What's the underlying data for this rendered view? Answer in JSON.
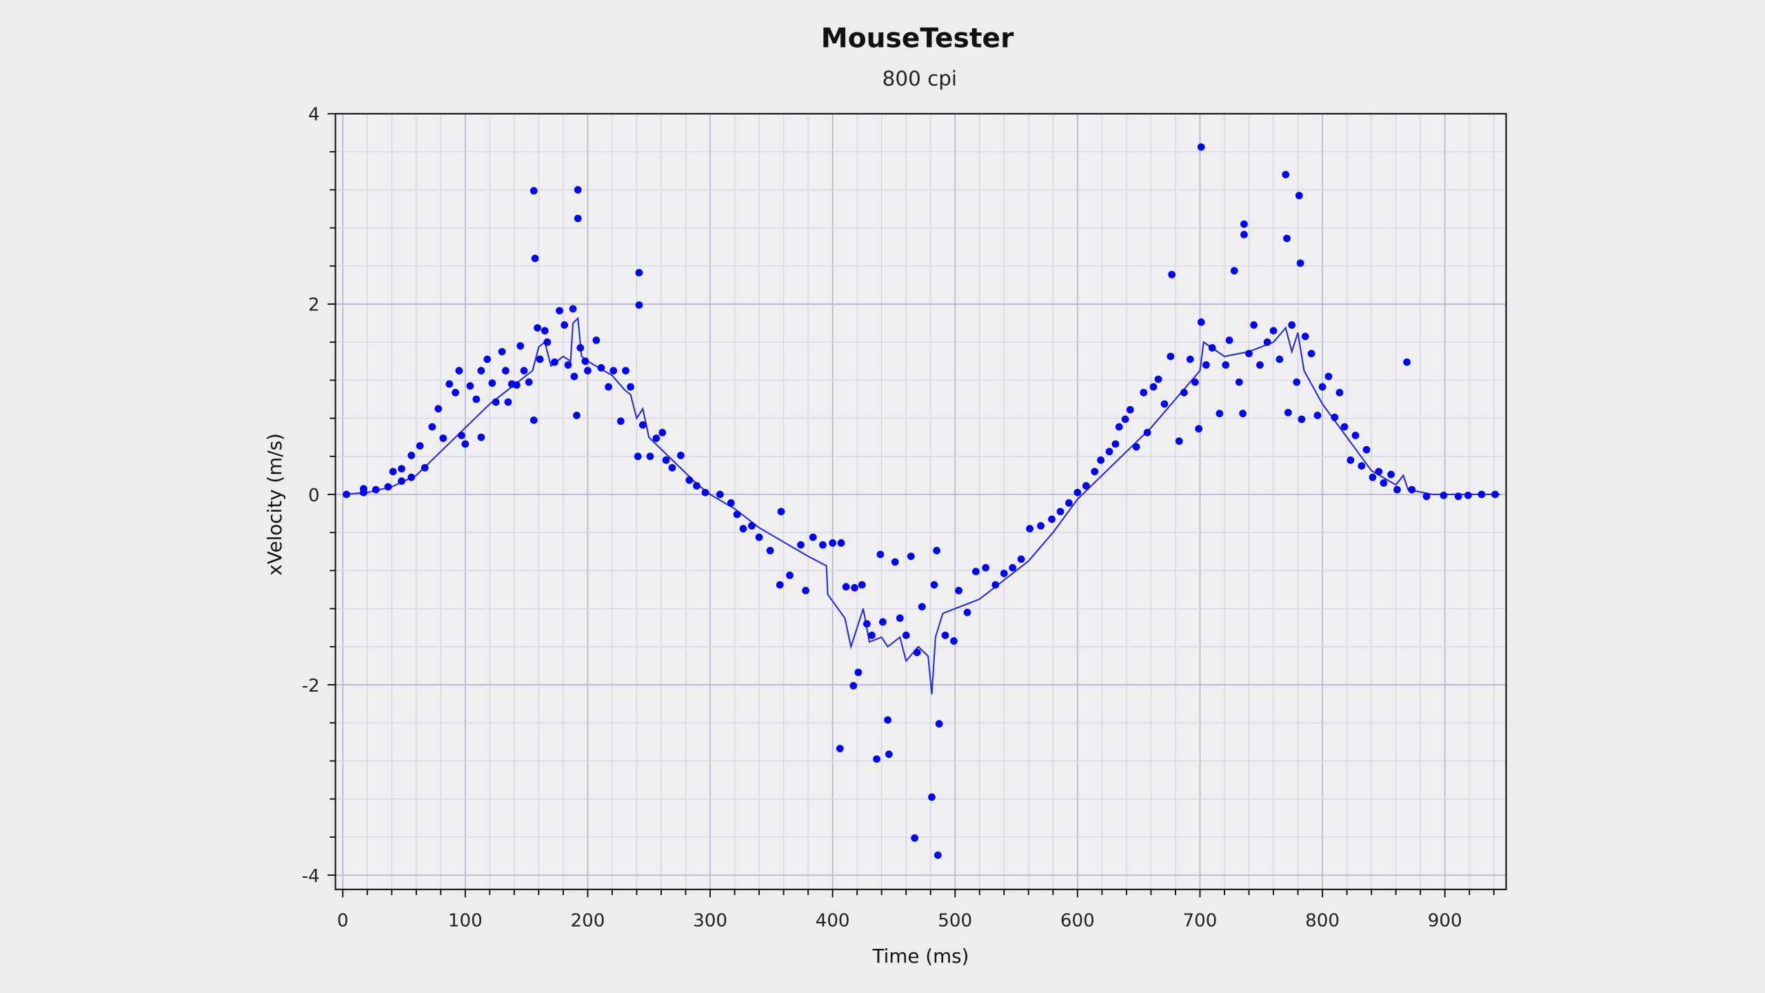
{
  "chart_data": {
    "type": "scatter",
    "title": "MouseTester",
    "subtitle": "800 cpi",
    "xlabel": "Time (ms)",
    "ylabel": "xVelocity (m/s)",
    "xlim": [
      -6,
      950
    ],
    "ylim": [
      -4.15,
      4.0
    ],
    "x_ticks": [
      0,
      100,
      200,
      300,
      400,
      500,
      600,
      700,
      800,
      900
    ],
    "x_tick_labels": [
      "0",
      "100",
      "200",
      "300",
      "400",
      "500",
      "600",
      "700",
      "800",
      "900"
    ],
    "x_minor_step": 20,
    "y_ticks": [
      4,
      2,
      0,
      -2,
      -4
    ],
    "y_tick_labels": [
      "4",
      "2",
      "0",
      "-2",
      "-4"
    ],
    "y_minor_step": 0.4,
    "grid": true,
    "colors": {
      "points": "#0000ff",
      "line": "#2a2ad8",
      "grid_major": "#b8b8d0",
      "grid_minor": "#d4d4e2"
    },
    "series": [
      {
        "type": "scatter",
        "points": [
          [
            3,
            0.0
          ],
          [
            17,
            0.02
          ],
          [
            17,
            0.06
          ],
          [
            27,
            0.05
          ],
          [
            37,
            0.08
          ],
          [
            41,
            0.24
          ],
          [
            48,
            0.27
          ],
          [
            48,
            0.14
          ],
          [
            56,
            0.41
          ],
          [
            56,
            0.18
          ],
          [
            63,
            0.51
          ],
          [
            67,
            0.28
          ],
          [
            73,
            0.71
          ],
          [
            78,
            0.9
          ],
          [
            82,
            0.59
          ],
          [
            87,
            1.16
          ],
          [
            92,
            1.07
          ],
          [
            95,
            1.3
          ],
          [
            97,
            0.62
          ],
          [
            100,
            0.53
          ],
          [
            104,
            1.14
          ],
          [
            109,
            1.0
          ],
          [
            113,
            1.3
          ],
          [
            113,
            0.6
          ],
          [
            118,
            1.42
          ],
          [
            122,
            1.17
          ],
          [
            125,
            0.97
          ],
          [
            130,
            1.5
          ],
          [
            133,
            1.3
          ],
          [
            135,
            0.97
          ],
          [
            138,
            1.16
          ],
          [
            142,
            1.15
          ],
          [
            145,
            1.56
          ],
          [
            148,
            1.3
          ],
          [
            152,
            1.18
          ],
          [
            156,
            0.78
          ],
          [
            156,
            3.19
          ],
          [
            157,
            2.48
          ],
          [
            159,
            1.75
          ],
          [
            161,
            1.42
          ],
          [
            165,
            1.72
          ],
          [
            167,
            1.6
          ],
          [
            173,
            1.39
          ],
          [
            177,
            1.93
          ],
          [
            181,
            1.78
          ],
          [
            184,
            1.36
          ],
          [
            188,
            1.95
          ],
          [
            189,
            1.24
          ],
          [
            191,
            0.83
          ],
          [
            192,
            3.2
          ],
          [
            192,
            2.9
          ],
          [
            194,
            1.54
          ],
          [
            198,
            1.4
          ],
          [
            200,
            1.3
          ],
          [
            207,
            1.62
          ],
          [
            211,
            1.33
          ],
          [
            217,
            1.13
          ],
          [
            221,
            1.3
          ],
          [
            227,
            0.77
          ],
          [
            231,
            1.3
          ],
          [
            235,
            1.13
          ],
          [
            241,
            0.4
          ],
          [
            242,
            2.33
          ],
          [
            242,
            1.99
          ],
          [
            245,
            0.73
          ],
          [
            251,
            0.4
          ],
          [
            256,
            0.59
          ],
          [
            261,
            0.65
          ],
          [
            264,
            0.36
          ],
          [
            269,
            0.28
          ],
          [
            276,
            0.41
          ],
          [
            283,
            0.15
          ],
          [
            289,
            0.09
          ],
          [
            296,
            0.02
          ],
          [
            308,
            0.0
          ],
          [
            317,
            -0.09
          ],
          [
            322,
            -0.21
          ],
          [
            327,
            -0.36
          ],
          [
            334,
            -0.33
          ],
          [
            340,
            -0.45
          ],
          [
            349,
            -0.59
          ],
          [
            358,
            -0.18
          ],
          [
            357,
            -0.95
          ],
          [
            365,
            -0.85
          ],
          [
            374,
            -0.53
          ],
          [
            378,
            -1.01
          ],
          [
            384,
            -0.45
          ],
          [
            392,
            -0.53
          ],
          [
            400,
            -0.51
          ],
          [
            406,
            -2.67
          ],
          [
            407,
            -0.51
          ],
          [
            411,
            -0.97
          ],
          [
            417,
            -2.01
          ],
          [
            418,
            -0.98
          ],
          [
            421,
            -1.87
          ],
          [
            424,
            -0.95
          ],
          [
            428,
            -1.36
          ],
          [
            432,
            -1.48
          ],
          [
            436,
            -2.78
          ],
          [
            439,
            -0.63
          ],
          [
            441,
            -1.34
          ],
          [
            445,
            -2.37
          ],
          [
            446,
            -2.73
          ],
          [
            451,
            -0.71
          ],
          [
            455,
            -1.3
          ],
          [
            460,
            -1.48
          ],
          [
            464,
            -0.65
          ],
          [
            467,
            -3.61
          ],
          [
            469,
            -1.66
          ],
          [
            473,
            -1.18
          ],
          [
            481,
            -3.18
          ],
          [
            483,
            -0.95
          ],
          [
            485,
            -0.59
          ],
          [
            486,
            -3.79
          ],
          [
            487,
            -2.41
          ],
          [
            492,
            -1.48
          ],
          [
            499,
            -1.54
          ],
          [
            503,
            -1.01
          ],
          [
            510,
            -1.24
          ],
          [
            517,
            -0.81
          ],
          [
            525,
            -0.77
          ],
          [
            533,
            -0.95
          ],
          [
            540,
            -0.83
          ],
          [
            547,
            -0.77
          ],
          [
            554,
            -0.68
          ],
          [
            561,
            -0.36
          ],
          [
            570,
            -0.33
          ],
          [
            579,
            -0.26
          ],
          [
            586,
            -0.18
          ],
          [
            593,
            -0.09
          ],
          [
            600,
            0.02
          ],
          [
            607,
            0.09
          ],
          [
            614,
            0.24
          ],
          [
            619,
            0.36
          ],
          [
            626,
            0.45
          ],
          [
            631,
            0.53
          ],
          [
            634,
            0.71
          ],
          [
            639,
            0.79
          ],
          [
            643,
            0.89
          ],
          [
            648,
            0.5
          ],
          [
            654,
            1.07
          ],
          [
            657,
            0.65
          ],
          [
            662,
            1.13
          ],
          [
            666,
            1.21
          ],
          [
            671,
            0.95
          ],
          [
            676,
            1.45
          ],
          [
            677,
            2.31
          ],
          [
            683,
            0.56
          ],
          [
            687,
            1.07
          ],
          [
            692,
            1.42
          ],
          [
            696,
            1.18
          ],
          [
            699,
            0.69
          ],
          [
            701,
            3.65
          ],
          [
            701,
            1.81
          ],
          [
            705,
            1.36
          ],
          [
            710,
            1.54
          ],
          [
            716,
            0.85
          ],
          [
            721,
            1.36
          ],
          [
            724,
            1.62
          ],
          [
            728,
            2.35
          ],
          [
            732,
            1.18
          ],
          [
            735,
            0.85
          ],
          [
            736,
            2.84
          ],
          [
            736,
            2.73
          ],
          [
            740,
            1.48
          ],
          [
            744,
            1.78
          ],
          [
            749,
            1.36
          ],
          [
            755,
            1.6
          ],
          [
            760,
            1.72
          ],
          [
            765,
            1.42
          ],
          [
            770,
            3.36
          ],
          [
            771,
            2.69
          ],
          [
            772,
            0.86
          ],
          [
            775,
            1.78
          ],
          [
            779,
            1.18
          ],
          [
            781,
            3.14
          ],
          [
            782,
            2.43
          ],
          [
            783,
            0.79
          ],
          [
            786,
            1.66
          ],
          [
            791,
            1.48
          ],
          [
            796,
            0.83
          ],
          [
            800,
            1.13
          ],
          [
            805,
            1.24
          ],
          [
            810,
            0.81
          ],
          [
            814,
            1.07
          ],
          [
            818,
            0.71
          ],
          [
            823,
            0.36
          ],
          [
            827,
            0.62
          ],
          [
            832,
            0.3
          ],
          [
            836,
            0.47
          ],
          [
            841,
            0.18
          ],
          [
            846,
            0.24
          ],
          [
            850,
            0.12
          ],
          [
            856,
            0.21
          ],
          [
            861,
            0.05
          ],
          [
            869,
            1.39
          ],
          [
            873,
            0.05
          ],
          [
            885,
            -0.02
          ],
          [
            899,
            -0.01
          ],
          [
            911,
            -0.02
          ],
          [
            919,
            -0.01
          ],
          [
            930,
            0.0
          ],
          [
            941,
            0.0
          ]
        ]
      },
      {
        "type": "line",
        "points": [
          [
            0,
            0
          ],
          [
            20,
            0.02
          ],
          [
            40,
            0.08
          ],
          [
            60,
            0.2
          ],
          [
            80,
            0.45
          ],
          [
            100,
            0.7
          ],
          [
            120,
            0.95
          ],
          [
            140,
            1.15
          ],
          [
            155,
            1.3
          ],
          [
            160,
            1.55
          ],
          [
            165,
            1.6
          ],
          [
            170,
            1.35
          ],
          [
            180,
            1.45
          ],
          [
            186,
            1.4
          ],
          [
            188,
            1.8
          ],
          [
            192,
            1.85
          ],
          [
            195,
            1.45
          ],
          [
            200,
            1.4
          ],
          [
            220,
            1.25
          ],
          [
            230,
            1.1
          ],
          [
            235,
            1.05
          ],
          [
            240,
            0.8
          ],
          [
            245,
            0.9
          ],
          [
            250,
            0.6
          ],
          [
            270,
            0.35
          ],
          [
            290,
            0.1
          ],
          [
            300,
            0
          ],
          [
            320,
            -0.15
          ],
          [
            340,
            -0.35
          ],
          [
            360,
            -0.5
          ],
          [
            380,
            -0.65
          ],
          [
            395,
            -0.75
          ],
          [
            396,
            -1.05
          ],
          [
            410,
            -1.3
          ],
          [
            415,
            -1.6
          ],
          [
            420,
            -1.4
          ],
          [
            425,
            -1.2
          ],
          [
            430,
            -1.55
          ],
          [
            440,
            -1.5
          ],
          [
            445,
            -1.6
          ],
          [
            455,
            -1.5
          ],
          [
            460,
            -1.75
          ],
          [
            470,
            -1.6
          ],
          [
            478,
            -1.7
          ],
          [
            481,
            -2.1
          ],
          [
            484,
            -1.5
          ],
          [
            490,
            -1.25
          ],
          [
            500,
            -1.2
          ],
          [
            520,
            -1.1
          ],
          [
            540,
            -0.9
          ],
          [
            560,
            -0.7
          ],
          [
            580,
            -0.4
          ],
          [
            600,
            -0.05
          ],
          [
            620,
            0.2
          ],
          [
            640,
            0.45
          ],
          [
            660,
            0.7
          ],
          [
            680,
            1.0
          ],
          [
            700,
            1.3
          ],
          [
            703,
            1.6
          ],
          [
            720,
            1.45
          ],
          [
            740,
            1.5
          ],
          [
            760,
            1.6
          ],
          [
            770,
            1.75
          ],
          [
            775,
            1.5
          ],
          [
            780,
            1.7
          ],
          [
            785,
            1.3
          ],
          [
            800,
            0.95
          ],
          [
            820,
            0.6
          ],
          [
            840,
            0.25
          ],
          [
            860,
            0.1
          ],
          [
            866,
            0.2
          ],
          [
            870,
            0.05
          ],
          [
            890,
            0
          ],
          [
            945,
            0
          ]
        ]
      }
    ]
  }
}
